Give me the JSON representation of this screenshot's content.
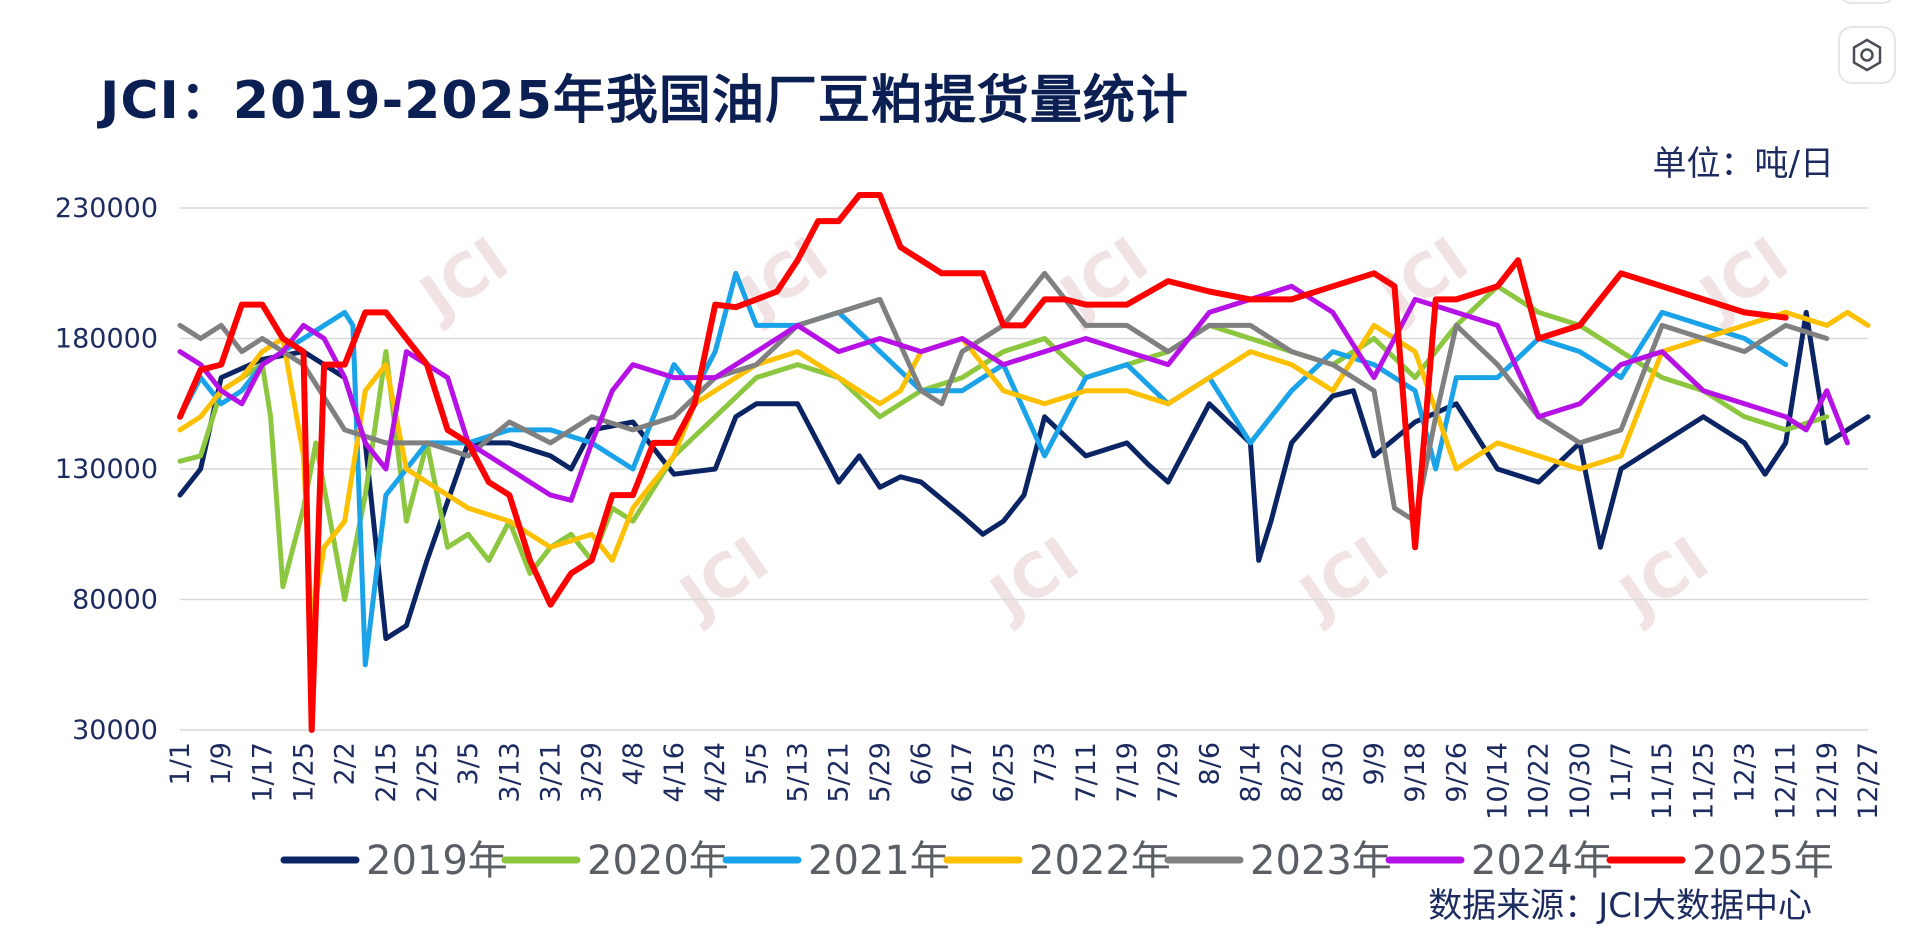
{
  "title": "JCI：2019-2025年我国油厂豆粕提货量统计",
  "unit_label": "单位：吨/日",
  "source_label": "数据来源：JCI大数据中心",
  "watermark_text": "JCI",
  "icons": {
    "settings": "settings-icon"
  },
  "chart_data": {
    "type": "line",
    "title": "JCI：2019-2025年我国油厂豆粕提货量统计",
    "xlabel": "",
    "ylabel": "",
    "ylim": [
      30000,
      230000
    ],
    "yticks": [
      30000,
      80000,
      130000,
      180000,
      230000
    ],
    "x_tick_labels": [
      "1/1",
      "1/9",
      "1/17",
      "1/25",
      "2/2",
      "2/15",
      "2/25",
      "3/5",
      "3/13",
      "3/21",
      "3/29",
      "4/8",
      "4/16",
      "4/24",
      "5/5",
      "5/13",
      "5/21",
      "5/29",
      "6/6",
      "6/17",
      "6/25",
      "7/3",
      "7/11",
      "7/19",
      "7/29",
      "8/6",
      "8/14",
      "8/22",
      "8/30",
      "9/9",
      "9/18",
      "9/26",
      "10/14",
      "10/22",
      "10/30",
      "11/7",
      "11/15",
      "11/25",
      "12/3",
      "12/11",
      "12/19",
      "12/27"
    ],
    "x_range_index": [
      0,
      41
    ],
    "grid": true,
    "legend_position": "bottom",
    "series": [
      {
        "name": "2019年",
        "color": "#0b2463",
        "x_index": [
          0,
          0.5,
          1,
          2,
          3,
          4,
          4.5,
          5,
          5.5,
          6,
          7,
          8,
          9,
          9.5,
          10,
          11,
          12,
          13,
          13.5,
          14,
          15,
          15.5,
          16,
          16.5,
          17,
          17.5,
          18,
          19,
          19.5,
          20,
          20.5,
          21,
          22,
          23,
          23.5,
          24,
          25,
          26,
          26.2,
          26.5,
          27,
          28,
          28.5,
          29,
          30,
          31,
          32,
          33,
          34,
          34.5,
          35,
          36,
          37,
          38,
          38.5,
          39,
          39.5,
          40,
          41
        ],
        "values": [
          120000,
          130000,
          165000,
          172000,
          175000,
          165000,
          140000,
          65000,
          70000,
          95000,
          140000,
          140000,
          135000,
          130000,
          145000,
          148000,
          128000,
          130000,
          150000,
          155000,
          155000,
          140000,
          125000,
          135000,
          123000,
          127000,
          125000,
          112000,
          105000,
          110000,
          120000,
          150000,
          135000,
          140000,
          132000,
          125000,
          155000,
          140000,
          95000,
          110000,
          140000,
          158000,
          160000,
          135000,
          148000,
          155000,
          130000,
          125000,
          140000,
          100000,
          130000,
          140000,
          150000,
          140000,
          128000,
          140000,
          190000,
          140000,
          150000
        ]
      },
      {
        "name": "2020年",
        "color": "#8dc63f",
        "x_index": [
          0,
          0.5,
          1,
          1.5,
          2,
          2.2,
          2.5,
          3,
          3.3,
          4,
          4.5,
          5,
          5.5,
          6,
          6.5,
          7,
          7.5,
          8,
          8.5,
          9,
          9.5,
          10,
          10.5,
          11,
          12,
          13,
          14,
          15,
          16,
          17,
          18,
          19,
          20,
          21,
          22,
          23,
          24,
          25,
          26,
          27,
          28,
          29,
          30,
          31,
          32,
          33,
          34,
          35,
          36,
          37,
          38,
          39,
          40
        ],
        "values": [
          133000,
          135000,
          160000,
          165000,
          170000,
          150000,
          85000,
          115000,
          140000,
          80000,
          120000,
          175000,
          110000,
          140000,
          100000,
          105000,
          95000,
          110000,
          90000,
          100000,
          105000,
          95000,
          115000,
          110000,
          135000,
          150000,
          165000,
          170000,
          165000,
          150000,
          160000,
          165000,
          175000,
          180000,
          165000,
          170000,
          175000,
          185000,
          180000,
          175000,
          170000,
          180000,
          165000,
          185000,
          200000,
          190000,
          185000,
          175000,
          165000,
          160000,
          150000,
          145000,
          150000
        ]
      },
      {
        "name": "2021年",
        "color": "#1aa3e8",
        "x_index": [
          0,
          0.5,
          1,
          1.5,
          2,
          3,
          4,
          4.2,
          4.5,
          5,
          5.5,
          6,
          7,
          8,
          9,
          10,
          11,
          12,
          12.5,
          13,
          13.5,
          14,
          15,
          16,
          17,
          18,
          19,
          20,
          21,
          22,
          23,
          24,
          25,
          26,
          27,
          28,
          29,
          30,
          30.5,
          31,
          32,
          33,
          34,
          35,
          36,
          37,
          38,
          39
        ],
        "values": [
          150000,
          165000,
          155000,
          160000,
          170000,
          180000,
          190000,
          185000,
          55000,
          120000,
          130000,
          140000,
          140000,
          145000,
          145000,
          140000,
          130000,
          170000,
          160000,
          175000,
          205000,
          185000,
          185000,
          190000,
          175000,
          160000,
          160000,
          170000,
          135000,
          165000,
          170000,
          155000,
          165000,
          140000,
          160000,
          175000,
          170000,
          160000,
          130000,
          165000,
          165000,
          180000,
          175000,
          165000,
          190000,
          185000,
          180000,
          170000
        ]
      },
      {
        "name": "2022年",
        "color": "#ffc000",
        "x_index": [
          0,
          0.5,
          1,
          1.5,
          2,
          2.5,
          3,
          3.2,
          3.5,
          4,
          4.5,
          5,
          5.5,
          6,
          7,
          8,
          9,
          10,
          10.5,
          11,
          12,
          12.5,
          13,
          14,
          15,
          16,
          17,
          17.5,
          18,
          19,
          20,
          21,
          22,
          23,
          24,
          25,
          26,
          27,
          28,
          29,
          30,
          31,
          32,
          33,
          34,
          35,
          36,
          37,
          38,
          39,
          40,
          40.5,
          41
        ],
        "values": [
          145000,
          150000,
          160000,
          165000,
          175000,
          180000,
          135000,
          70000,
          100000,
          110000,
          160000,
          170000,
          130000,
          125000,
          115000,
          110000,
          100000,
          105000,
          95000,
          115000,
          135000,
          155000,
          160000,
          170000,
          175000,
          165000,
          155000,
          160000,
          175000,
          180000,
          160000,
          155000,
          160000,
          160000,
          155000,
          165000,
          175000,
          170000,
          160000,
          185000,
          175000,
          130000,
          140000,
          135000,
          130000,
          135000,
          175000,
          180000,
          185000,
          190000,
          185000,
          190000,
          185000
        ]
      },
      {
        "name": "2023年",
        "color": "#808080",
        "x_index": [
          0,
          0.5,
          1,
          1.5,
          2,
          3,
          4,
          5,
          6,
          7,
          8,
          9,
          10,
          11,
          12,
          13,
          14,
          15,
          16,
          17,
          18,
          18.5,
          19,
          20,
          21,
          22,
          23,
          24,
          25,
          26,
          27,
          28,
          29,
          29.5,
          30,
          30.5,
          31,
          32,
          33,
          34,
          35,
          36,
          37,
          38,
          39,
          40
        ],
        "values": [
          185000,
          180000,
          185000,
          175000,
          180000,
          170000,
          145000,
          140000,
          140000,
          135000,
          148000,
          140000,
          150000,
          145000,
          150000,
          165000,
          170000,
          185000,
          190000,
          195000,
          160000,
          155000,
          175000,
          185000,
          205000,
          185000,
          185000,
          175000,
          185000,
          185000,
          175000,
          170000,
          160000,
          115000,
          110000,
          150000,
          185000,
          170000,
          150000,
          140000,
          145000,
          185000,
          180000,
          175000,
          185000,
          180000
        ]
      },
      {
        "name": "2024年",
        "color": "#b612e6",
        "x_index": [
          0,
          0.5,
          1,
          1.5,
          2,
          2.5,
          3,
          3.5,
          4,
          4.5,
          5,
          5.5,
          6,
          6.5,
          7,
          7.5,
          8,
          8.5,
          9,
          9.5,
          10,
          10.5,
          11,
          12,
          13,
          14,
          15,
          16,
          17,
          18,
          19,
          20,
          21,
          22,
          23,
          24,
          25,
          26,
          27,
          28,
          29,
          30,
          31,
          32,
          33,
          34,
          35,
          36,
          37,
          38,
          39,
          39.5,
          40,
          40.5
        ],
        "values": [
          175000,
          170000,
          160000,
          155000,
          170000,
          175000,
          185000,
          180000,
          165000,
          140000,
          130000,
          175000,
          170000,
          165000,
          140000,
          135000,
          130000,
          125000,
          120000,
          118000,
          140000,
          160000,
          170000,
          165000,
          165000,
          175000,
          185000,
          175000,
          180000,
          175000,
          180000,
          170000,
          175000,
          180000,
          175000,
          170000,
          190000,
          195000,
          200000,
          190000,
          165000,
          195000,
          190000,
          185000,
          150000,
          155000,
          170000,
          175000,
          160000,
          155000,
          150000,
          145000,
          160000,
          140000
        ]
      },
      {
        "name": "2025年",
        "color": "#ff0000",
        "x_index": [
          0,
          0.5,
          1,
          1.5,
          2,
          2.5,
          3,
          3.2,
          3.5,
          4,
          4.5,
          5,
          5.5,
          6,
          6.5,
          7,
          7.5,
          8,
          8.5,
          9,
          9.5,
          10,
          10.5,
          11,
          11.5,
          12,
          12.5,
          13,
          13.5,
          14,
          14.5,
          15,
          15.5,
          16,
          16.5,
          17,
          17.5,
          18,
          18.5,
          19,
          19.5,
          20,
          20.5,
          21,
          21.5,
          22,
          23,
          24,
          25,
          26,
          27,
          28,
          29,
          29.5,
          30,
          30.5,
          31,
          32,
          32.5,
          33,
          34,
          35,
          36,
          37,
          38,
          39
        ],
        "values": [
          150000,
          168000,
          170000,
          193000,
          193000,
          180000,
          175000,
          30000,
          170000,
          170000,
          190000,
          190000,
          180000,
          170000,
          145000,
          140000,
          125000,
          120000,
          95000,
          78000,
          90000,
          95000,
          120000,
          120000,
          140000,
          140000,
          155000,
          193000,
          192000,
          195000,
          198000,
          210000,
          225000,
          225000,
          235000,
          235000,
          215000,
          210000,
          205000,
          205000,
          205000,
          185000,
          185000,
          195000,
          195000,
          193000,
          193000,
          202000,
          198000,
          195000,
          195000,
          200000,
          205000,
          200000,
          100000,
          195000,
          195000,
          200000,
          210000,
          180000,
          185000,
          205000,
          200000,
          195000,
          190000,
          188000
        ]
      }
    ]
  }
}
